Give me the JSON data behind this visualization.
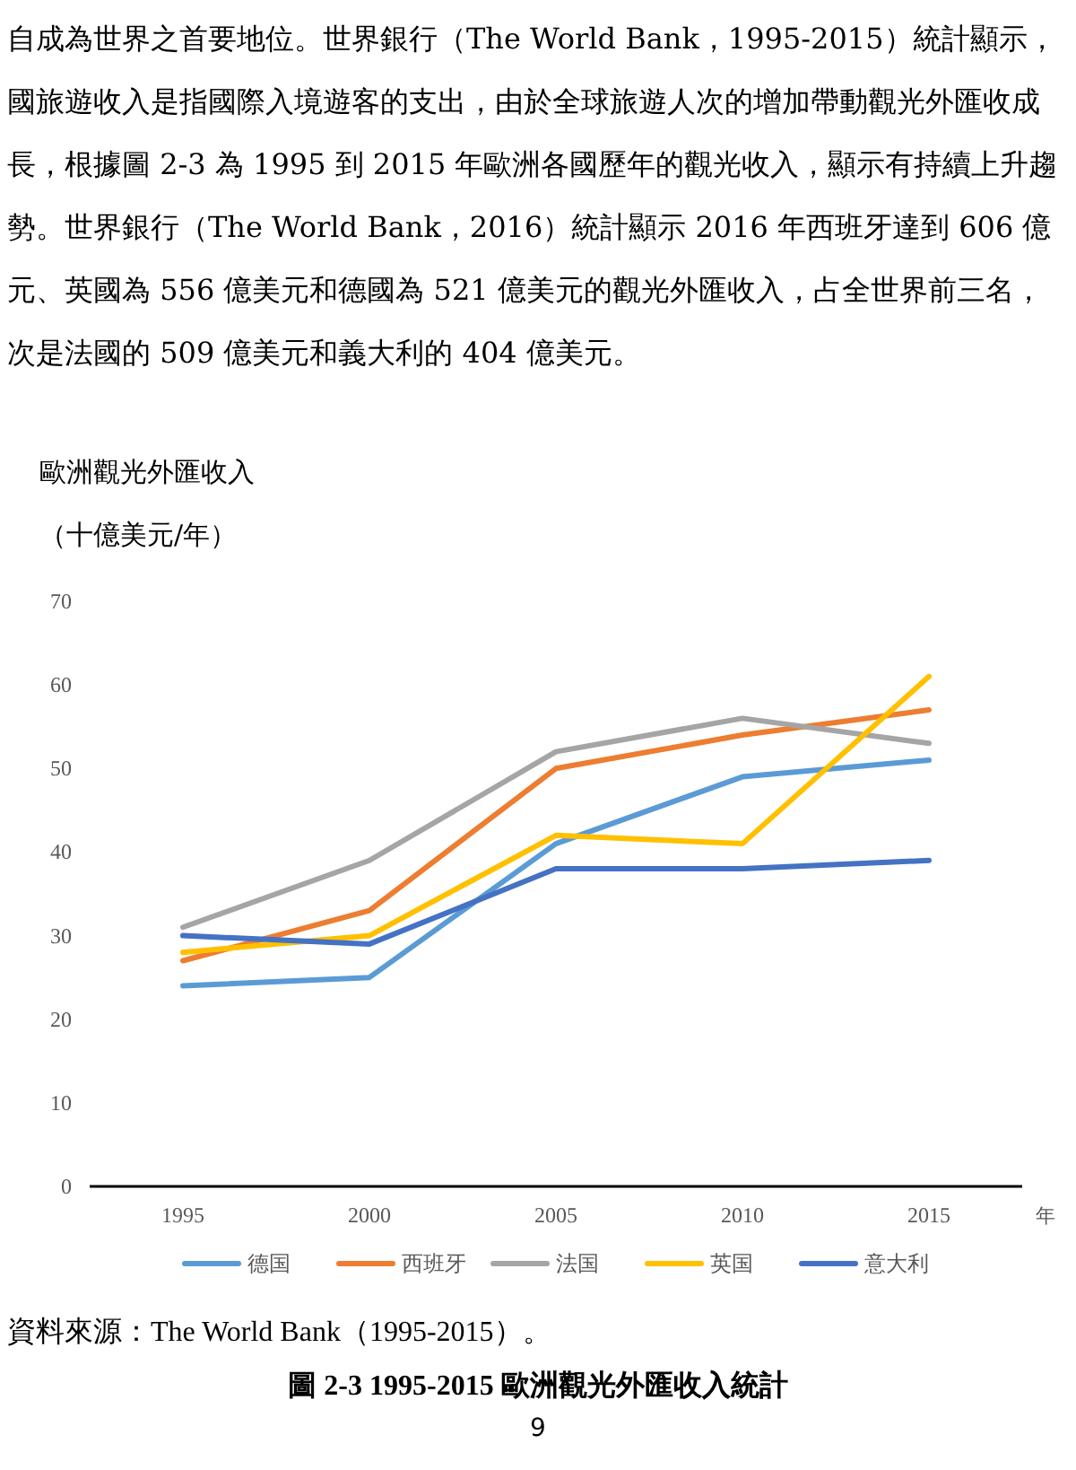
{
  "chart_data": {
    "type": "line",
    "title": "圖 2-3 1995-2015 歐洲觀光外匯收入統計",
    "ylabel": "歐洲觀光外匯收入（十億美元/年）",
    "xlabel": "年",
    "categories": [
      "1995",
      "2000",
      "2005",
      "2010",
      "2015"
    ],
    "series": [
      {
        "name": "德国",
        "color": "#5b9bd5",
        "values": [
          24,
          25,
          41,
          49,
          51
        ]
      },
      {
        "name": "西班牙",
        "color": "#ed7d31",
        "values": [
          27,
          33,
          50,
          54,
          57
        ]
      },
      {
        "name": "法国",
        "color": "#a5a5a5",
        "values": [
          31,
          39,
          52,
          56,
          53
        ]
      },
      {
        "name": "英国",
        "color": "#ffc000",
        "values": [
          28,
          30,
          42,
          41,
          61
        ]
      },
      {
        "name": "意大利",
        "color": "#4472c4",
        "values": [
          30,
          29,
          38,
          38,
          39
        ]
      }
    ],
    "ylim": [
      0,
      70
    ],
    "yticks": [
      0,
      10,
      20,
      30,
      40,
      50,
      60,
      70
    ],
    "grid": false,
    "legend": "bottom",
    "marker": "none",
    "line_style": "solid",
    "annotations": [
      "自成為世界之首要地位。世界銀行（The World Bank，1995-2015）統計顯示，國旅遊收入是指國際入境遊客的支出，由於全球旅遊人次的增加帶動觀光外匯收成長，根據圖 2-3 為 1995 到 2015 年歐洲各國歷年的觀光收入，顯示有持續上升趨勢。世界銀行（The World Bank，2016）統計顯示 2016 年西班牙達到 606 億元、英國為 556 億美元和德國為 521 億美元的觀光外匯收入，占全世界前三名，次是法國的 509 億美元和義大利的 404 億美元。",
      "資料來源：The World Bank（1995-2015）。",
      "9"
    ]
  }
}
